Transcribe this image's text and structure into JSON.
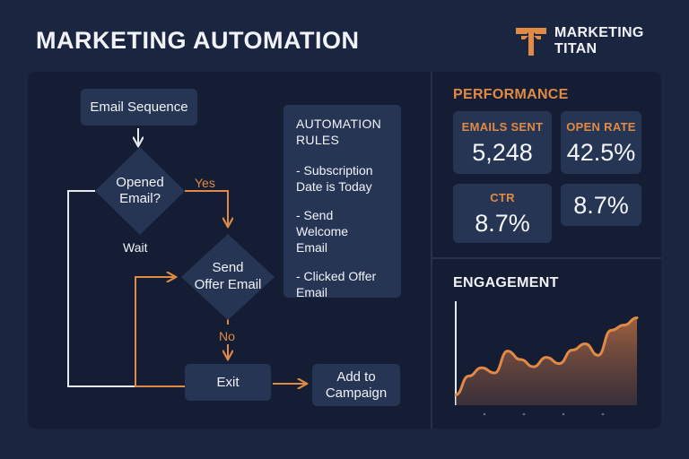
{
  "header": {
    "title": "MARKETING AUTOMATION",
    "brand_line1": "MARKETING",
    "brand_line2": "TITAN",
    "brand_logo_icon": "titan-t-logo-icon"
  },
  "colors": {
    "background": "#1a2540",
    "panel": "#141d33",
    "box": "#263554",
    "accent": "#e08a45",
    "text": "#f1f3f8"
  },
  "flowchart": {
    "nodes": {
      "email_sequence": "Email Sequence",
      "opened_email_line1": "Opened",
      "opened_email_line2": "Email?",
      "send_offer_line1": "Send",
      "send_offer_line2": "Offer Email",
      "exit": "Exit",
      "add_campaign_line1": "Add to",
      "add_campaign_line2": "Campaign"
    },
    "labels": {
      "yes": "Yes",
      "no": "No",
      "wait": "Wait"
    }
  },
  "rules": {
    "title_line1": "AUTOMATION",
    "title_line2": "RULES",
    "items": [
      [
        "- Subscription",
        "Date is Today"
      ],
      [
        "- Send Welcome",
        "Email"
      ],
      [
        "- Clicked Offer",
        "Email"
      ]
    ]
  },
  "performance": {
    "title": "PERFORMANCE",
    "metrics": [
      {
        "label": "EMAILS SENT",
        "value": "5,248"
      },
      {
        "label": "OPEN RATE",
        "value": "42.5%"
      },
      {
        "label": "CTR",
        "value": "8.7%"
      },
      {
        "label": "",
        "value": "8.7%"
      }
    ]
  },
  "engagement": {
    "title": "ENGAGEMENT"
  },
  "chart_data": {
    "type": "area",
    "title": "ENGAGEMENT",
    "xlabel": "",
    "ylabel": "",
    "grid": false,
    "x": [
      0,
      1,
      2,
      3,
      4,
      5,
      6,
      7,
      8,
      9,
      10,
      11,
      12,
      13,
      14
    ],
    "values": [
      10,
      28,
      36,
      31,
      52,
      44,
      37,
      46,
      40,
      53,
      59,
      48,
      72,
      77,
      84
    ],
    "ylim": [
      0,
      100
    ]
  }
}
